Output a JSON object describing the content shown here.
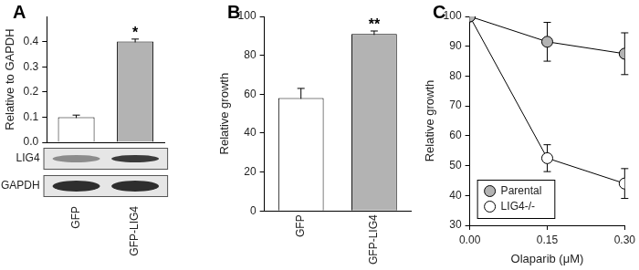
{
  "chart_data": [
    {
      "type": "bar",
      "panel": "A",
      "y_label": "Relative to GAPDH",
      "categories": [
        "GFP",
        "GFP-LIG4"
      ],
      "values": [
        0.1,
        0.4
      ],
      "errors": [
        0.008,
        0.01
      ],
      "colors": [
        "#ffffff",
        "#b3b3b3"
      ],
      "ylim": [
        0,
        0.5
      ],
      "yticks": [
        {
          "value": 0,
          "label": "0.0"
        },
        {
          "value": 0.1,
          "label": "0.1"
        },
        {
          "value": 0.2,
          "label": "0.2"
        },
        {
          "value": 0.3,
          "label": "0.3"
        },
        {
          "value": 0.4,
          "label": "0.4"
        }
      ],
      "grid": false,
      "annotations": [
        {
          "category": "GFP-LIG4",
          "text": "*"
        }
      ],
      "blot_labels": [
        "LIG4",
        "GAPDH"
      ]
    },
    {
      "type": "bar",
      "panel": "B",
      "y_label": "Relative growth",
      "categories": [
        "GFP",
        "GFP-LIG4"
      ],
      "values": [
        58,
        91
      ],
      "errors": [
        5,
        1.5
      ],
      "colors": [
        "#ffffff",
        "#b3b3b3"
      ],
      "ylim": [
        0,
        100
      ],
      "yticks": [
        0,
        20,
        40,
        60,
        80,
        100
      ],
      "grid": false,
      "annotations": [
        {
          "category": "GFP-LIG4",
          "text": "**"
        }
      ]
    },
    {
      "type": "line",
      "panel": "C",
      "x_label": "Olaparib (μM)",
      "y_label": "Relative growth",
      "x": [
        0,
        0.15,
        0.3
      ],
      "xlim": [
        0,
        0.3
      ],
      "xticks": [
        {
          "value": 0,
          "label": "0.00"
        },
        {
          "value": 0.15,
          "label": "0.15"
        },
        {
          "value": 0.3,
          "label": "0.30"
        }
      ],
      "ylim": [
        30,
        100
      ],
      "yticks": [
        30,
        40,
        50,
        60,
        70,
        80,
        90,
        100
      ],
      "series": [
        {
          "name": "Parental",
          "color": "#b3b3b3",
          "values": [
            100,
            91.5,
            87.5
          ],
          "errors": [
            0,
            6.5,
            7
          ]
        },
        {
          "name": "LIG4-/-",
          "color": "#ffffff",
          "values": [
            100,
            52.5,
            44
          ],
          "errors": [
            0,
            4.5,
            5
          ]
        }
      ],
      "marker": "circle",
      "legend": "lower left",
      "grid": false
    }
  ]
}
